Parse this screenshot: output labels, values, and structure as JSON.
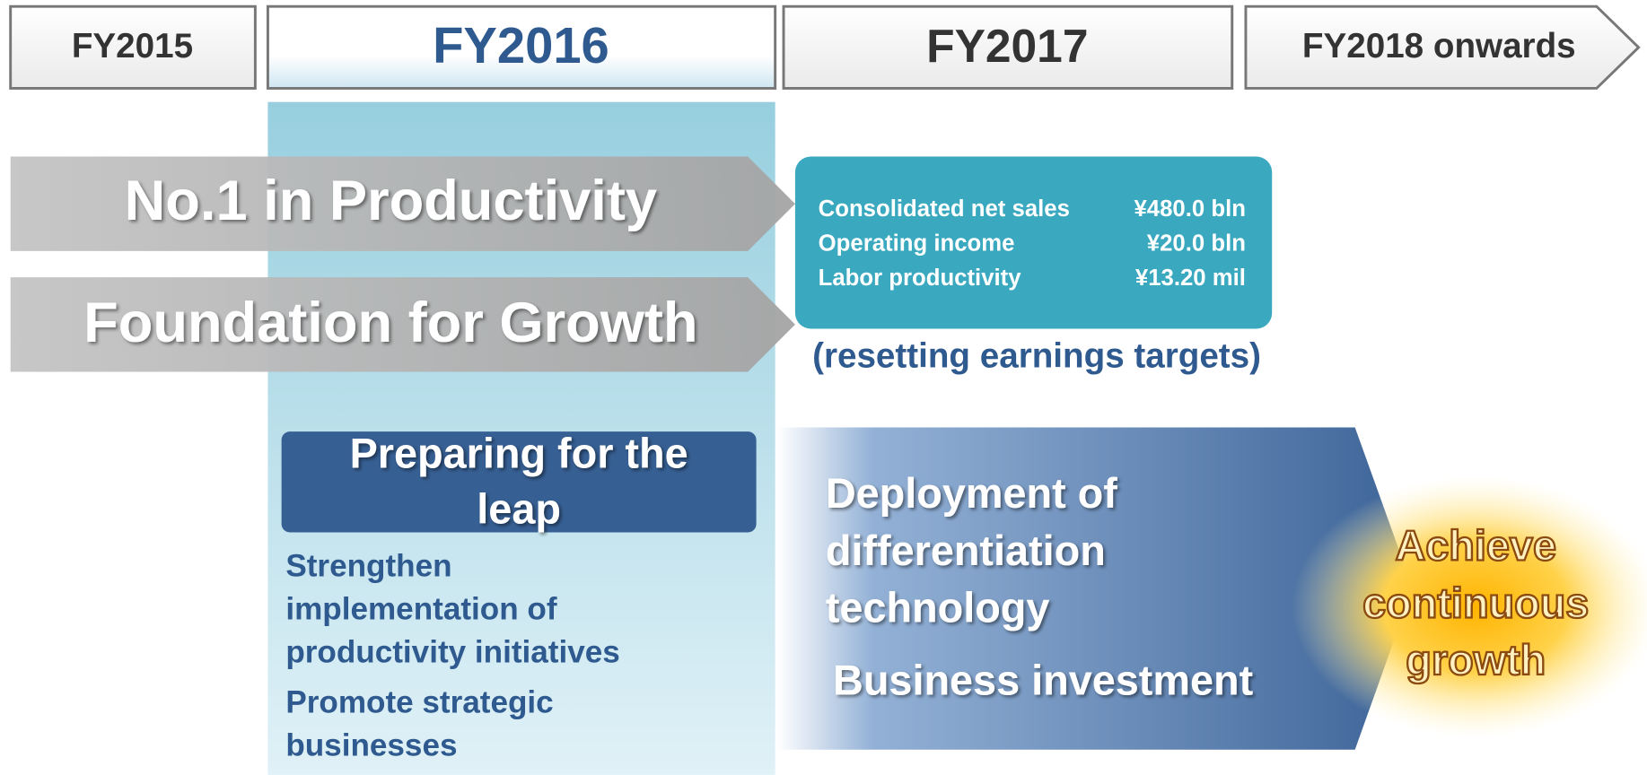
{
  "header": {
    "periods": [
      "FY2015",
      "FY2016",
      "FY2017",
      "FY2018 onwards"
    ]
  },
  "pillars": [
    "No.1 in Productivity",
    "Foundation for Growth"
  ],
  "targets": {
    "rows": [
      [
        "Consolidated net sales",
        "¥480.0 bln"
      ],
      [
        "Operating income",
        "¥20.0 bln"
      ],
      [
        "Labor productivity",
        "¥13.20 mil"
      ]
    ],
    "note": "(resetting earnings targets)"
  },
  "fy2016": {
    "title_lines": [
      "Preparing for the",
      "leap"
    ],
    "items": [
      [
        "Strengthen",
        "implementation of",
        "productivity initiatives"
      ],
      [
        "Promote strategic",
        "businesses"
      ]
    ]
  },
  "fy2017": {
    "lines": [
      "Deployment of",
      "differentiation",
      "technology"
    ],
    "investment": "Business investment"
  },
  "goal": {
    "lines": [
      "Achieve",
      "continuous",
      "growth"
    ]
  }
}
